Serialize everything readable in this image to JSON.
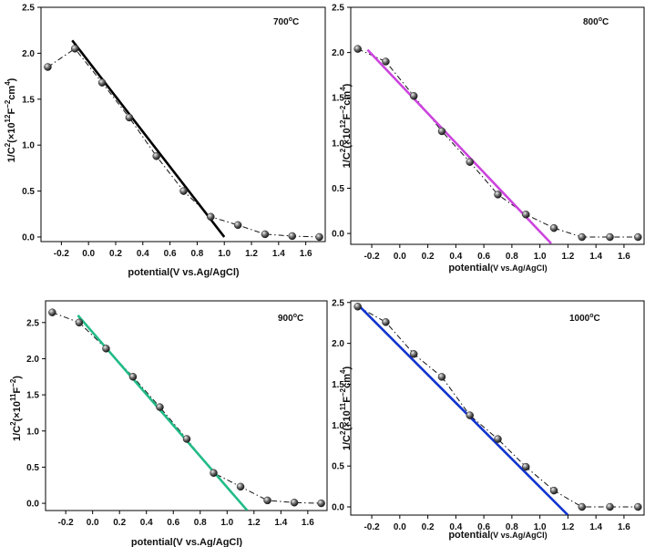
{
  "chart_data": [
    {
      "type": "scatter",
      "annotation": {
        "base": "700",
        "sup": "o",
        "tail": "C"
      },
      "xlabel": {
        "main": "potential(V vs.Ag/AgCl)",
        "small": ""
      },
      "ylabel": {
        "parts": [
          {
            "t": "1/C",
            "s": 0
          },
          {
            "t": "2",
            "s": 1
          },
          {
            "t": "(×10",
            "s": 0
          },
          {
            "t": "12",
            "s": 1
          },
          {
            "t": "F",
            "s": 0
          },
          {
            "t": "−2",
            "s": 1
          },
          {
            "t": "cm",
            "s": 0
          },
          {
            "t": "4",
            "s": 1
          },
          {
            "t": ")",
            "s": 0
          }
        ]
      },
      "xlim": [
        -0.35,
        1.75
      ],
      "ylim": [
        -0.05,
        2.5
      ],
      "xticks": [
        -0.2,
        0.0,
        0.2,
        0.4,
        0.6,
        0.8,
        1.0,
        1.2,
        1.4,
        1.6
      ],
      "xtick_labels": [
        "-0.2",
        "0.0",
        "0.2",
        "0.4",
        "0.6",
        "0.8",
        "1.0",
        "1.2",
        "1.4",
        "1.6"
      ],
      "yticks": [
        0.0,
        0.5,
        1.0,
        1.5,
        2.0,
        2.5
      ],
      "ytick_labels": [
        "0.0",
        "0.5",
        "1.0",
        "1.5",
        "2.0",
        "2.5"
      ],
      "series": [
        {
          "x": [
            -0.3,
            -0.1,
            0.1,
            0.3,
            0.5,
            0.7,
            0.9,
            1.1,
            1.3,
            1.5,
            1.7
          ],
          "y": [
            1.85,
            2.05,
            1.68,
            1.3,
            0.88,
            0.5,
            0.22,
            0.13,
            0.03,
            0.01,
            0.0
          ]
        }
      ],
      "fit_line": {
        "x": [
          -0.12,
          1.0
        ],
        "y": [
          2.14,
          0.0
        ],
        "color": "#000000"
      }
    },
    {
      "type": "scatter",
      "annotation": {
        "base": "800",
        "sup": "o",
        "tail": "C"
      },
      "xlabel": {
        "main": "potential",
        "small": "(V vs.Ag/AgCl)"
      },
      "ylabel": {
        "parts": [
          {
            "t": "1/C",
            "s": 0
          },
          {
            "t": "2",
            "s": 1
          },
          {
            "t": "(×10",
            "s": 0
          },
          {
            "t": "12",
            "s": 1
          },
          {
            "t": "F",
            "s": 0
          },
          {
            "t": "−2",
            "s": 1
          },
          {
            "t": "cm",
            "s": 0
          },
          {
            "t": "4",
            "s": 1
          },
          {
            "t": ")",
            "s": 0
          }
        ]
      },
      "xlim": [
        -0.35,
        1.75
      ],
      "ylim": [
        -0.12,
        2.5
      ],
      "xticks": [
        -0.2,
        0.0,
        0.2,
        0.4,
        0.6,
        0.8,
        1.0,
        1.2,
        1.4,
        1.6
      ],
      "xtick_labels": [
        "-0.2",
        "0.0",
        "0.2",
        "0.4",
        "0.6",
        "0.8",
        "1.0",
        "1.2",
        "1.4",
        "1.6"
      ],
      "yticks": [
        0.0,
        0.5,
        1.0,
        1.5,
        2.0,
        2.5
      ],
      "ytick_labels": [
        "0.0",
        "0.5",
        "1.0",
        "1.5",
        "2.0",
        "2.5"
      ],
      "series": [
        {
          "x": [
            -0.3,
            -0.1,
            0.1,
            0.3,
            0.5,
            0.7,
            0.9,
            1.1,
            1.3,
            1.5,
            1.7
          ],
          "y": [
            2.04,
            1.9,
            1.52,
            1.13,
            0.79,
            0.43,
            0.21,
            0.06,
            -0.04,
            -0.04,
            -0.04
          ]
        }
      ],
      "fit_line": {
        "x": [
          -0.23,
          1.08
        ],
        "y": [
          2.03,
          -0.11
        ],
        "color": "#cc44dd"
      }
    },
    {
      "type": "scatter",
      "annotation": {
        "base": "900",
        "sup": "o",
        "tail": "C"
      },
      "xlabel": {
        "main": "potential(V vs.Ag/AgCl)",
        "small": ""
      },
      "ylabel": {
        "parts": [
          {
            "t": "1/C",
            "s": 0
          },
          {
            "t": "2",
            "s": 1
          },
          {
            "t": "(×10",
            "s": 0
          },
          {
            "t": "11",
            "s": 1
          },
          {
            "t": "F",
            "s": 0
          },
          {
            "t": "−2",
            "s": 1
          },
          {
            "t": ")",
            "s": 0
          }
        ]
      },
      "xlim": [
        -0.35,
        1.75
      ],
      "ylim": [
        -0.1,
        2.8
      ],
      "xticks": [
        -0.2,
        0.0,
        0.2,
        0.4,
        0.6,
        0.8,
        1.0,
        1.2,
        1.4,
        1.6
      ],
      "xtick_labels": [
        "-0.2",
        "0.0",
        "0.2",
        "0.4",
        "0.6",
        "0.8",
        "1.0",
        "1.2",
        "1.4",
        "1.6"
      ],
      "yticks": [
        0.0,
        0.5,
        1.0,
        1.5,
        2.0,
        2.5
      ],
      "ytick_labels": [
        "0.0",
        "0.5",
        "1.0",
        "1.5",
        "2.0",
        "2.5"
      ],
      "series": [
        {
          "x": [
            -0.3,
            -0.1,
            0.1,
            0.3,
            0.5,
            0.7,
            0.9,
            1.1,
            1.3,
            1.5,
            1.7
          ],
          "y": [
            2.64,
            2.5,
            2.14,
            1.75,
            1.33,
            0.89,
            0.42,
            0.23,
            0.04,
            0.01,
            0.0
          ]
        }
      ],
      "fit_line": {
        "x": [
          -0.11,
          1.15
        ],
        "y": [
          2.6,
          -0.1
        ],
        "color": "#22bb88"
      }
    },
    {
      "type": "scatter",
      "annotation": {
        "base": "1000",
        "sup": "o",
        "tail": "C"
      },
      "xlabel": {
        "main": "potential",
        "small": "(V vs.Ag/AgCl)"
      },
      "ylabel": {
        "parts": [
          {
            "t": "1/C",
            "s": 0
          },
          {
            "t": "2",
            "s": 1
          },
          {
            "t": "(×10",
            "s": 0
          },
          {
            "t": "11",
            "s": 1
          },
          {
            "t": "F",
            "s": 0
          },
          {
            "t": "−2",
            "s": 1
          },
          {
            "t": "cm",
            "s": 0
          },
          {
            "t": "4",
            "s": 1
          },
          {
            "t": ")",
            "s": 0
          }
        ]
      },
      "xlim": [
        -0.35,
        1.75
      ],
      "ylim": [
        -0.1,
        2.52
      ],
      "xticks": [
        -0.2,
        0.0,
        0.2,
        0.4,
        0.6,
        0.8,
        1.0,
        1.2,
        1.4,
        1.6
      ],
      "xtick_labels": [
        "-0.2",
        "0.0",
        "0.2",
        "0.4",
        "0.6",
        "0.8",
        "1.0",
        "1.2",
        "1.4",
        "1.6"
      ],
      "yticks": [
        0.0,
        0.5,
        1.0,
        1.5,
        2.0,
        2.5
      ],
      "ytick_labels": [
        "0.0",
        "0.5",
        "1.0",
        "1.5",
        "2.0",
        "2.5"
      ],
      "series": [
        {
          "x": [
            -0.3,
            -0.1,
            0.1,
            0.3,
            0.5,
            0.7,
            0.9,
            1.1,
            1.3,
            1.5,
            1.7
          ],
          "y": [
            2.45,
            2.26,
            1.87,
            1.59,
            1.12,
            0.83,
            0.49,
            0.2,
            0.0,
            0.0,
            0.0
          ]
        }
      ],
      "fit_line": {
        "x": [
          -0.28,
          1.2
        ],
        "y": [
          2.44,
          -0.1
        ],
        "color": "#1133cc"
      }
    }
  ]
}
